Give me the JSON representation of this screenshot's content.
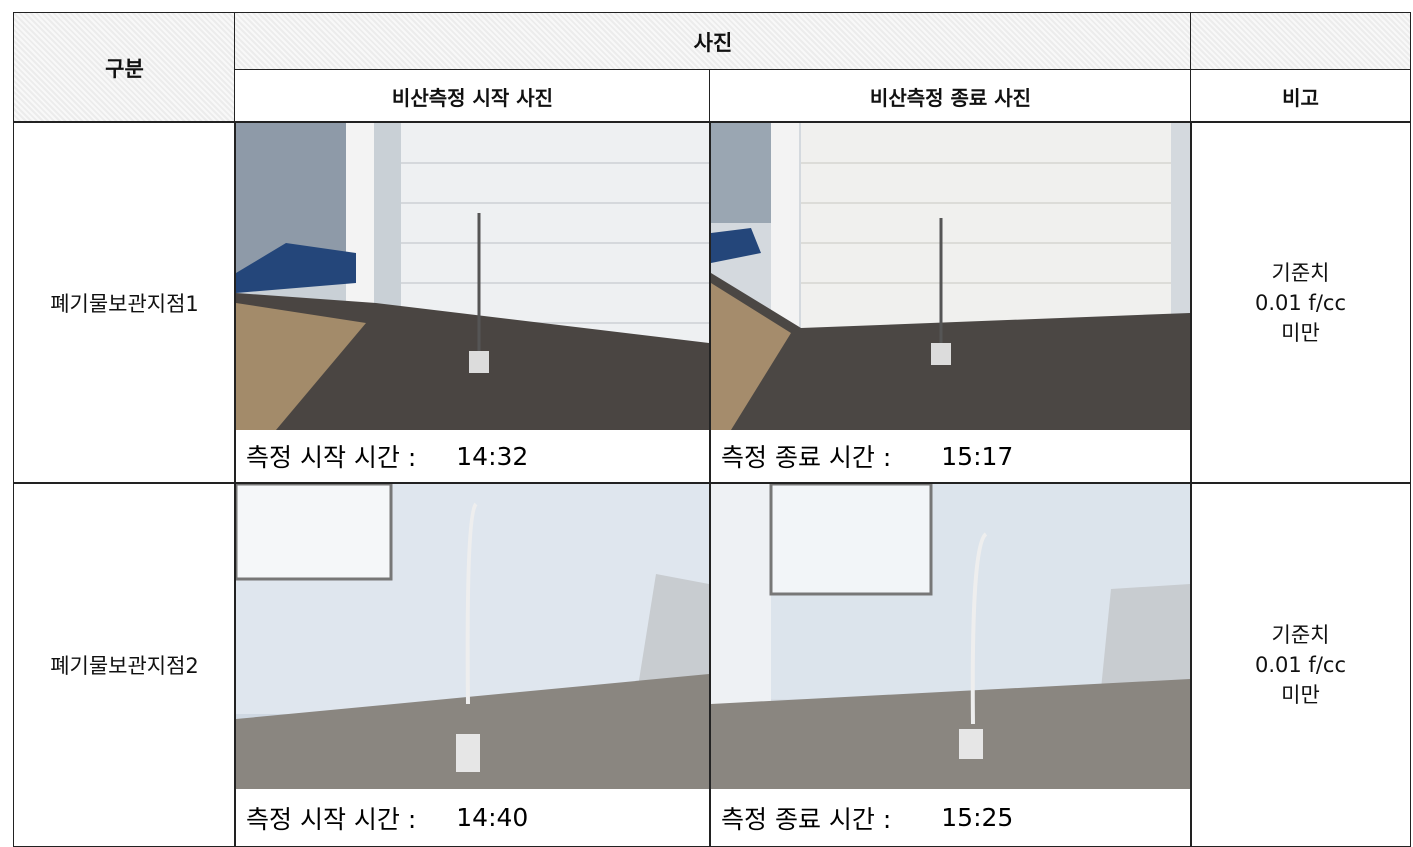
{
  "header": {
    "category": "구분",
    "photos": "사진",
    "start_photo": "비산측정 시작 사진",
    "end_photo": "비산측정 종료 사진",
    "remarks": "비고"
  },
  "rows": [
    {
      "location": "폐기물보관지점1",
      "start": {
        "label": "측정 시작 시간 :",
        "time": "14:32"
      },
      "end": {
        "label": "측정 종료 시간 :",
        "time": "15:17"
      },
      "remarks": [
        "기준치",
        "0.01 f/cc",
        "미만"
      ]
    },
    {
      "location": "폐기물보관지점2",
      "start": {
        "label": "측정 시작 시간 :",
        "time": "14:40"
      },
      "end": {
        "label": "측정 종료 시간 :",
        "time": "15:25"
      },
      "remarks": [
        "기준치",
        "0.01 f/cc",
        "미만"
      ]
    }
  ]
}
